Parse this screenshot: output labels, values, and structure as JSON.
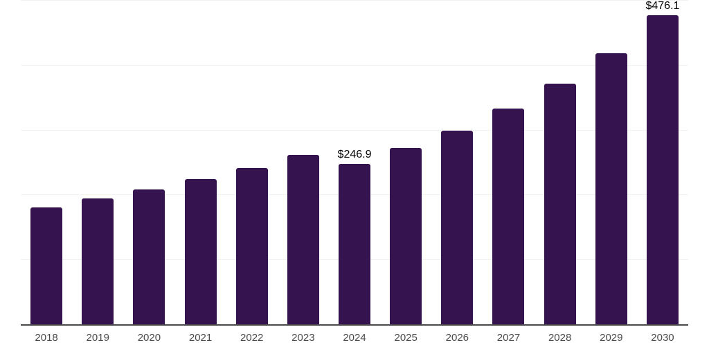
{
  "chart_data": {
    "type": "bar",
    "title": "",
    "xlabel": "",
    "ylabel": "",
    "categories": [
      "2018",
      "2019",
      "2020",
      "2021",
      "2022",
      "2023",
      "2024",
      "2025",
      "2026",
      "2027",
      "2028",
      "2029",
      "2030"
    ],
    "values": [
      180,
      194,
      208,
      224,
      241,
      261,
      246.9,
      272,
      299,
      333,
      371,
      418,
      476.1
    ],
    "data_labels": {
      "2024": "$246.9",
      "2030": "$476.1"
    },
    "ylim": [
      0,
      500
    ],
    "gridline_values": [
      100,
      200,
      300,
      400,
      500
    ],
    "grid": true,
    "legend": false,
    "colors": {
      "bar": "#35134f",
      "axis_line": "#4a4a4a",
      "gridline": "#f2f2f2",
      "tick_label": "#4a4a4a",
      "data_label": "#000000"
    }
  }
}
